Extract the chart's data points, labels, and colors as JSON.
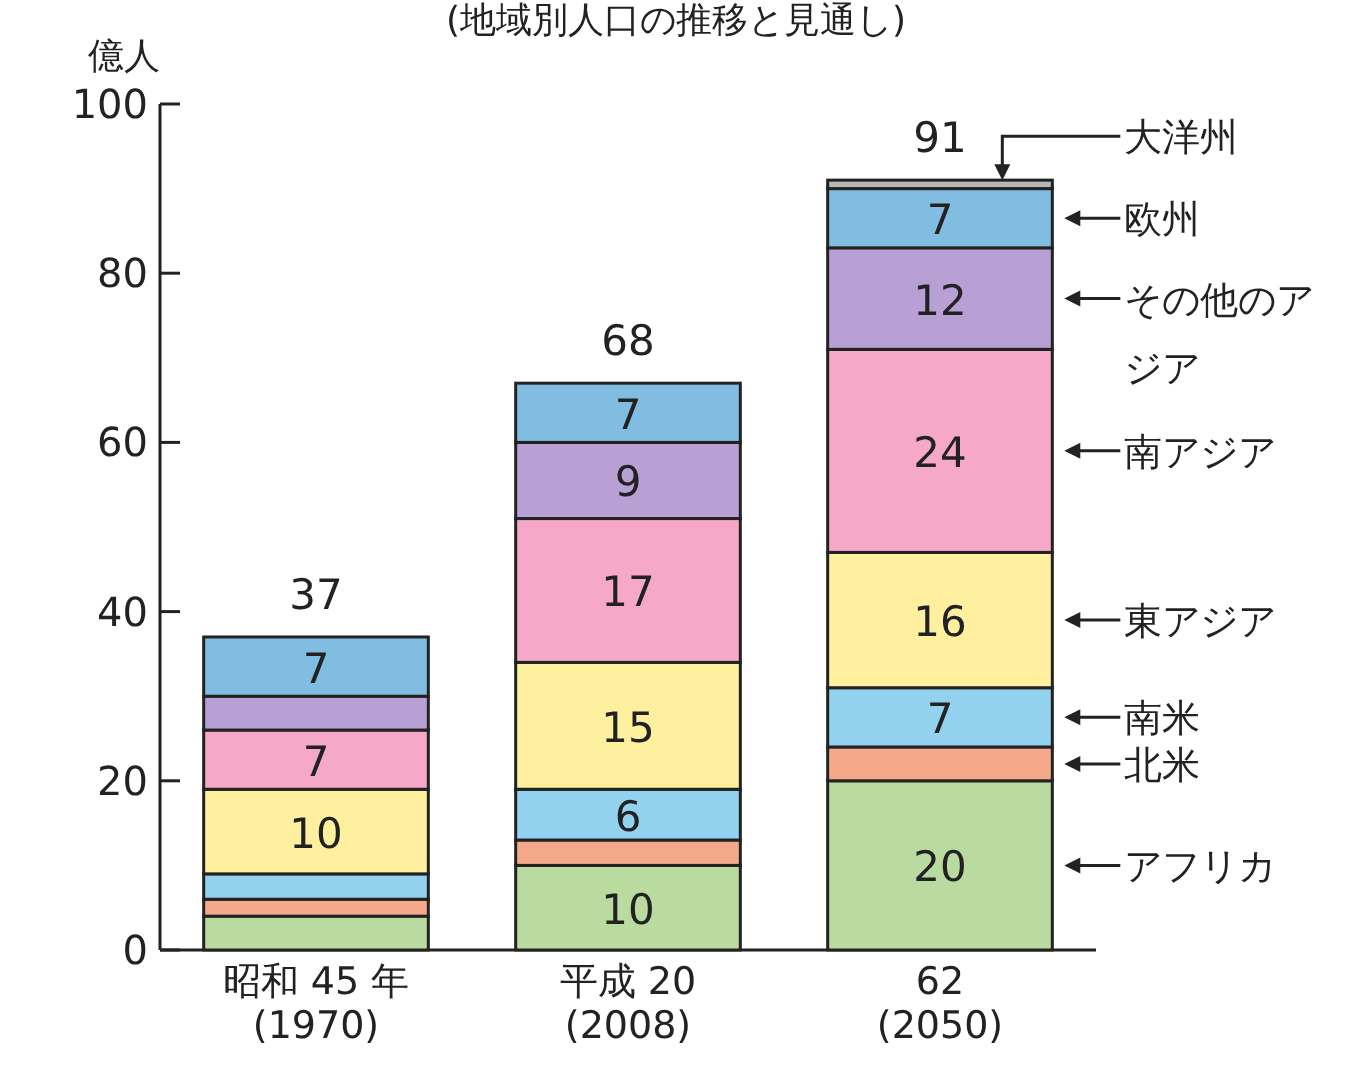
{
  "chart_data": {
    "type": "bar",
    "stacked": true,
    "title": "(地域別人口の推移と見通し)",
    "ylabel": "億人",
    "categories": [
      "昭和 45 年 (1970)",
      "平成 20 (2008)",
      "62 (2050)"
    ],
    "ylim": [
      0,
      100
    ],
    "yticks": [
      0,
      20,
      40,
      60,
      80,
      100
    ],
    "grid": false,
    "legend": "right",
    "totals": [
      "37",
      "68",
      "91"
    ],
    "series": [
      {
        "name": "アフリカ",
        "color": "#b9dba0",
        "values": [
          4,
          10,
          20
        ],
        "value_labels": [
          null,
          "10",
          "20"
        ]
      },
      {
        "name": "北米",
        "color": "#f4a98a",
        "values": [
          2,
          3,
          4
        ],
        "value_labels": [
          null,
          null,
          null
        ]
      },
      {
        "name": "南米",
        "color": "#93d2ee",
        "values": [
          3,
          6,
          7
        ],
        "value_labels": [
          null,
          "6",
          "7"
        ]
      },
      {
        "name": "東アジア",
        "color": "#fff0a0",
        "values": [
          10,
          15,
          16
        ],
        "value_labels": [
          "10",
          "15",
          "16"
        ]
      },
      {
        "name": "南アジア",
        "color": "#f5a8c8",
        "values": [
          7,
          17,
          24
        ],
        "value_labels": [
          "7",
          "17",
          "24"
        ]
      },
      {
        "name": "その他のアジア",
        "color": "#b9a0d4",
        "values": [
          4,
          9,
          12
        ],
        "value_labels": [
          null,
          "9",
          "12"
        ]
      },
      {
        "name": "欧州",
        "color": "#80bde0",
        "values": [
          7,
          7,
          7
        ],
        "value_labels": [
          "7",
          "7",
          "7"
        ]
      },
      {
        "name": "大洋州",
        "color": "#b8b8b8",
        "values": [
          null,
          null,
          1
        ],
        "value_labels": [
          null,
          null,
          null
        ]
      }
    ]
  }
}
